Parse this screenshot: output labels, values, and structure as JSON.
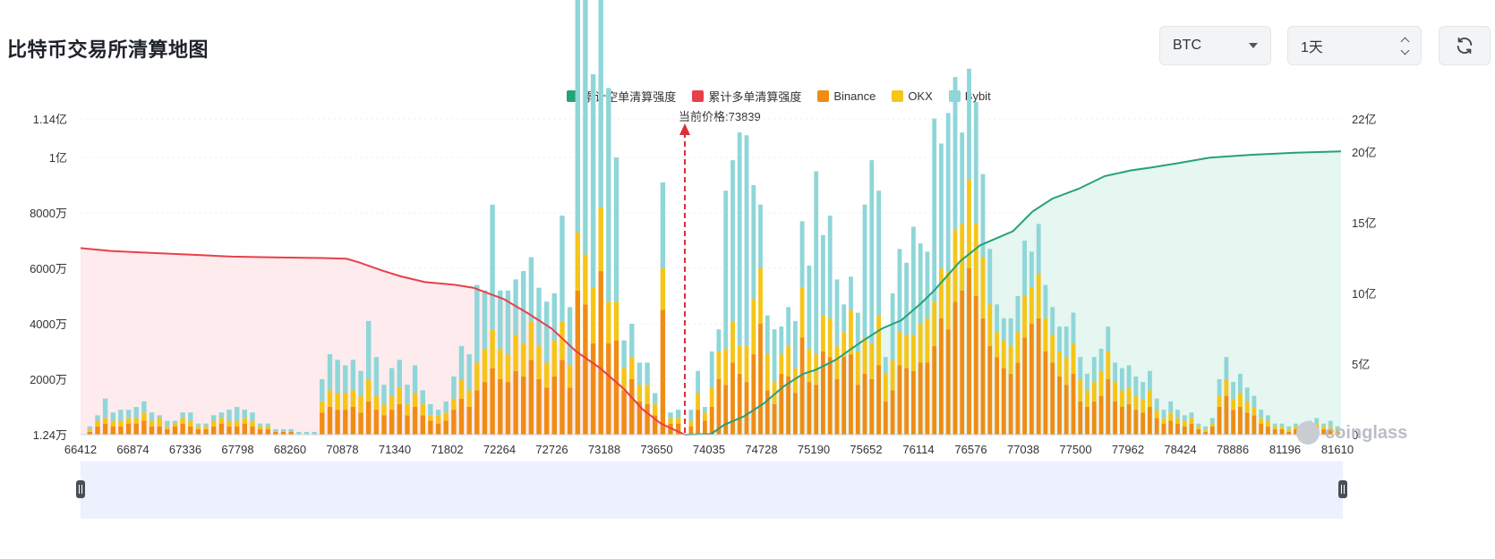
{
  "page": {
    "title": "比特币交易所清算地图"
  },
  "controls": {
    "coin_select": {
      "value": "BTC"
    },
    "range_select": {
      "value": "1天"
    },
    "refresh_icon": "refresh-icon"
  },
  "watermark": {
    "text": "coinglass"
  },
  "chart_data": {
    "type": "bar",
    "title": "",
    "current_price_label": "当前价格:73839",
    "legend": [
      {
        "name": "累计空单清算强度",
        "color": "#26a17b"
      },
      {
        "name": "累计多单清算强度",
        "color": "#e8404b"
      },
      {
        "name": "Binance",
        "color": "#f08c14"
      },
      {
        "name": "OKX",
        "color": "#f5c518"
      },
      {
        "name": "Bybit",
        "color": "#8fd6d8"
      }
    ],
    "x_tick_labels": [
      "66412",
      "66874",
      "67336",
      "67798",
      "68260",
      "70878",
      "71340",
      "71802",
      "72264",
      "72726",
      "73188",
      "73650",
      "74035",
      "74728",
      "75190",
      "75652",
      "76114",
      "76576",
      "77038",
      "77500",
      "77962",
      "78424",
      "78886",
      "81196",
      "81610"
    ],
    "y_left_ticks": [
      "1.24万",
      "2000万",
      "4000万",
      "6000万",
      "8000万",
      "1亿",
      "1.14亿"
    ],
    "y_right_ticks": [
      "0",
      "5亿",
      "10亿",
      "15亿",
      "20亿",
      "22亿"
    ],
    "current_price": 73839,
    "bars_left": [
      [
        1,
        1,
        1
      ],
      [
        3,
        2,
        2
      ],
      [
        4,
        2,
        7
      ],
      [
        3,
        2,
        3
      ],
      [
        3,
        2,
        4
      ],
      [
        4,
        2,
        3
      ],
      [
        4,
        2,
        4
      ],
      [
        5,
        3,
        4
      ],
      [
        3,
        2,
        3
      ],
      [
        3,
        3,
        1
      ],
      [
        2,
        1,
        2
      ],
      [
        3,
        1,
        1
      ],
      [
        4,
        2,
        2
      ],
      [
        3,
        2,
        3
      ],
      [
        2,
        1,
        1
      ],
      [
        2,
        1,
        1
      ],
      [
        3,
        2,
        2
      ],
      [
        4,
        2,
        2
      ],
      [
        3,
        2,
        4
      ],
      [
        3,
        2,
        5
      ],
      [
        4,
        2,
        3
      ],
      [
        3,
        2,
        3
      ],
      [
        2,
        1,
        1
      ],
      [
        2,
        1,
        1
      ],
      [
        1,
        0,
        1
      ],
      [
        1,
        0,
        1
      ],
      [
        1,
        0,
        1
      ],
      [
        0,
        0,
        1
      ],
      [
        0,
        0,
        1
      ],
      [
        0,
        0,
        1
      ],
      [
        8,
        4,
        8
      ],
      [
        10,
        6,
        13
      ],
      [
        9,
        6,
        12
      ],
      [
        9,
        6,
        10
      ],
      [
        10,
        6,
        11
      ],
      [
        8,
        6,
        9
      ],
      [
        12,
        8,
        21
      ],
      [
        9,
        5,
        14
      ],
      [
        7,
        4,
        7
      ],
      [
        9,
        5,
        10
      ],
      [
        11,
        6,
        10
      ],
      [
        7,
        4,
        7
      ],
      [
        10,
        5,
        10
      ],
      [
        7,
        4,
        5
      ],
      [
        5,
        2,
        4
      ],
      [
        4,
        3,
        2
      ],
      [
        5,
        3,
        4
      ],
      [
        9,
        4,
        8
      ],
      [
        13,
        7,
        12
      ],
      [
        10,
        6,
        13
      ],
      [
        16,
        10,
        28
      ],
      [
        19,
        12,
        21
      ],
      [
        24,
        14,
        45
      ],
      [
        20,
        11,
        21
      ],
      [
        19,
        10,
        23
      ],
      [
        23,
        13,
        20
      ],
      [
        21,
        12,
        26
      ],
      [
        27,
        14,
        23
      ],
      [
        20,
        12,
        21
      ],
      [
        17,
        9,
        22
      ],
      [
        21,
        13,
        17
      ],
      [
        27,
        14,
        38
      ],
      [
        17,
        8,
        21
      ],
      [
        52,
        21,
        127
      ],
      [
        47,
        18,
        128
      ],
      [
        33,
        20,
        77
      ],
      [
        59,
        23,
        116
      ],
      [
        33,
        15,
        77
      ],
      [
        34,
        14,
        52
      ],
      [
        16,
        8,
        10
      ],
      [
        20,
        8,
        12
      ],
      [
        12,
        6,
        8
      ],
      [
        11,
        7,
        8
      ],
      [
        7,
        4,
        4
      ],
      [
        45,
        15,
        31
      ],
      [
        4,
        2,
        2
      ],
      [
        4,
        2,
        3
      ]
    ],
    "bars_right": [
      [
        3,
        2,
        4
      ],
      [
        9,
        6,
        8
      ],
      [
        5,
        3,
        2
      ],
      [
        10,
        7,
        13
      ],
      [
        20,
        10,
        8
      ],
      [
        18,
        13,
        57
      ],
      [
        26,
        15,
        58
      ],
      [
        22,
        10,
        77
      ],
      [
        19,
        13,
        76
      ],
      [
        29,
        20,
        41
      ],
      [
        40,
        20,
        23
      ],
      [
        16,
        13,
        14
      ],
      [
        11,
        8,
        19
      ],
      [
        22,
        7,
        10
      ],
      [
        21,
        11,
        14
      ],
      [
        15,
        9,
        17
      ],
      [
        35,
        18,
        24
      ],
      [
        19,
        12,
        30
      ],
      [
        18,
        11,
        66
      ],
      [
        30,
        13,
        29
      ],
      [
        28,
        14,
        37
      ],
      [
        20,
        12,
        24
      ],
      [
        28,
        9,
        10
      ],
      [
        29,
        16,
        12
      ],
      [
        18,
        12,
        14
      ],
      [
        22,
        13,
        48
      ],
      [
        20,
        13,
        66
      ],
      [
        25,
        18,
        45
      ],
      [
        12,
        10,
        6
      ],
      [
        16,
        11,
        24
      ],
      [
        25,
        12,
        30
      ],
      [
        24,
        12,
        26
      ],
      [
        23,
        13,
        39
      ],
      [
        26,
        14,
        29
      ],
      [
        26,
        16,
        24
      ],
      [
        32,
        16,
        66
      ],
      [
        42,
        18,
        45
      ],
      [
        38,
        21,
        57
      ],
      [
        48,
        26,
        55
      ],
      [
        52,
        24,
        33
      ],
      [
        60,
        32,
        40
      ],
      [
        50,
        26,
        44
      ],
      [
        42,
        22,
        30
      ],
      [
        32,
        15,
        20
      ],
      [
        28,
        9,
        10
      ],
      [
        24,
        10,
        8
      ],
      [
        22,
        10,
        10
      ],
      [
        26,
        11,
        13
      ],
      [
        35,
        15,
        20
      ],
      [
        40,
        13,
        13
      ],
      [
        42,
        16,
        18
      ],
      [
        30,
        12,
        12
      ],
      [
        26,
        10,
        10
      ],
      [
        21,
        9,
        9
      ],
      [
        18,
        10,
        11
      ],
      [
        22,
        11,
        11
      ],
      [
        12,
        8,
        8
      ],
      [
        10,
        6,
        6
      ],
      [
        12,
        7,
        9
      ],
      [
        14,
        9,
        8
      ],
      [
        20,
        10,
        9
      ],
      [
        12,
        7,
        7
      ],
      [
        10,
        6,
        8
      ],
      [
        11,
        6,
        8
      ],
      [
        9,
        5,
        7
      ],
      [
        8,
        5,
        6
      ],
      [
        10,
        6,
        7
      ],
      [
        6,
        3,
        4
      ],
      [
        4,
        2,
        3
      ],
      [
        5,
        3,
        4
      ],
      [
        4,
        2,
        3
      ],
      [
        3,
        2,
        2
      ],
      [
        4,
        2,
        2
      ],
      [
        2,
        1,
        1
      ],
      [
        1,
        1,
        1
      ],
      [
        3,
        1,
        2
      ],
      [
        10,
        4,
        6
      ],
      [
        14,
        6,
        8
      ],
      [
        9,
        4,
        6
      ],
      [
        10,
        5,
        7
      ],
      [
        8,
        4,
        5
      ],
      [
        7,
        3,
        4
      ],
      [
        4,
        2,
        3
      ],
      [
        3,
        2,
        2
      ],
      [
        2,
        1,
        1
      ],
      [
        2,
        1,
        1
      ],
      [
        1,
        1,
        1
      ],
      [
        2,
        1,
        1
      ],
      [
        1,
        0,
        1
      ],
      [
        2,
        1,
        2
      ],
      [
        3,
        1,
        2
      ],
      [
        2,
        1,
        1
      ],
      [
        2,
        1,
        2
      ],
      [
        1,
        1,
        1
      ]
    ],
    "cum_long_curve": [
      [
        0,
        13.2
      ],
      [
        0.05,
        13.0
      ],
      [
        0.1,
        12.9
      ],
      [
        0.15,
        12.8
      ],
      [
        0.2,
        12.7
      ],
      [
        0.25,
        12.6
      ],
      [
        0.32,
        12.55
      ],
      [
        0.4,
        12.5
      ],
      [
        0.44,
        12.45
      ],
      [
        0.46,
        12.2
      ],
      [
        0.5,
        11.6
      ],
      [
        0.53,
        11.2
      ],
      [
        0.57,
        10.8
      ],
      [
        0.62,
        10.6
      ],
      [
        0.65,
        10.4
      ],
      [
        0.7,
        9.6
      ],
      [
        0.74,
        8.6
      ],
      [
        0.78,
        7.5
      ],
      [
        0.82,
        5.9
      ],
      [
        0.86,
        4.7
      ],
      [
        0.9,
        3.2
      ],
      [
        0.93,
        1.8
      ],
      [
        0.96,
        0.8
      ],
      [
        1,
        0
      ]
    ],
    "cum_short_curve": [
      [
        0,
        0
      ],
      [
        0.04,
        0.05
      ],
      [
        0.06,
        0.7
      ],
      [
        0.09,
        1.3
      ],
      [
        0.12,
        2.2
      ],
      [
        0.15,
        3.4
      ],
      [
        0.18,
        4.3
      ],
      [
        0.2,
        4.6
      ],
      [
        0.23,
        5.3
      ],
      [
        0.27,
        6.6
      ],
      [
        0.3,
        7.5
      ],
      [
        0.33,
        8.1
      ],
      [
        0.36,
        9.3
      ],
      [
        0.38,
        10.2
      ],
      [
        0.42,
        12.3
      ],
      [
        0.45,
        13.4
      ],
      [
        0.48,
        14.0
      ],
      [
        0.5,
        14.4
      ],
      [
        0.53,
        15.8
      ],
      [
        0.56,
        16.7
      ],
      [
        0.6,
        17.4
      ],
      [
        0.64,
        18.3
      ],
      [
        0.68,
        18.7
      ],
      [
        0.71,
        18.9
      ],
      [
        0.75,
        19.2
      ],
      [
        0.8,
        19.6
      ],
      [
        0.86,
        19.8
      ],
      [
        0.93,
        19.95
      ],
      [
        1,
        20.05
      ]
    ]
  }
}
